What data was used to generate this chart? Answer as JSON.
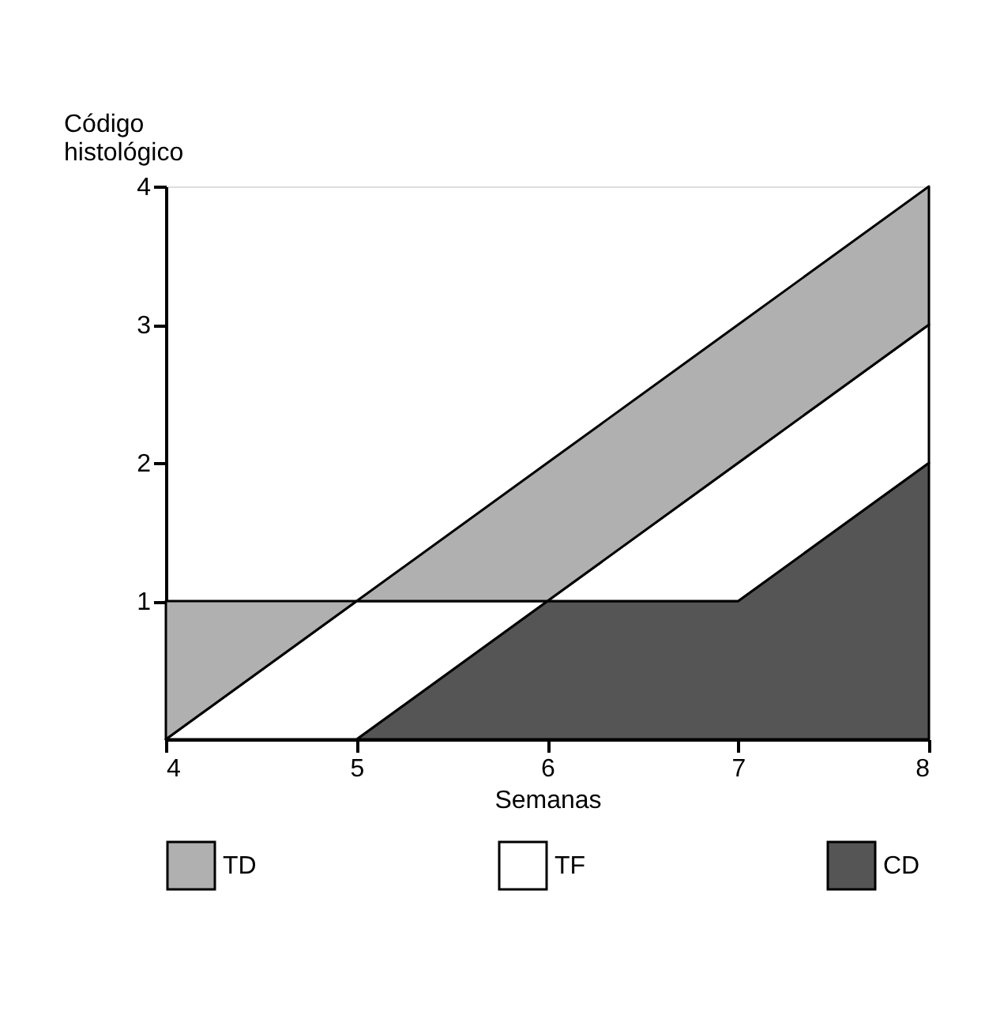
{
  "chart_data": {
    "type": "area",
    "stacked": true,
    "xlabel": "Semanas",
    "ylabel": "Código histológico",
    "x": [
      4,
      5,
      6,
      7,
      8
    ],
    "series": [
      {
        "name": "CD",
        "color": "#555555",
        "values": [
          0,
          0,
          1,
          1,
          2
        ]
      },
      {
        "name": "TF",
        "color": "#ffffff",
        "values": [
          0,
          1,
          0,
          1,
          1
        ]
      },
      {
        "name": "TD",
        "color": "#b0b0b0",
        "values": [
          1,
          0,
          1,
          1,
          1
        ]
      }
    ],
    "xlim": [
      4,
      8
    ],
    "xticks": [
      4,
      5,
      6,
      7,
      8
    ],
    "ylim": [
      0,
      4
    ],
    "yticks": [
      1,
      2,
      3,
      4
    ],
    "legend": "bottom"
  }
}
